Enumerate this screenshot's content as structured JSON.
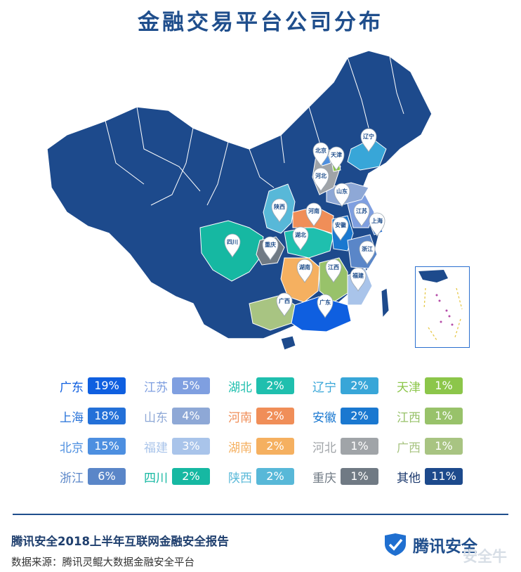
{
  "title": "金融交易平台公司分布",
  "map_pins": [
    "北京",
    "天津",
    "辽宁",
    "河北",
    "山东",
    "江苏",
    "上海",
    "陕西",
    "河南",
    "安徽",
    "四川",
    "重庆",
    "湖北",
    "浙江",
    "湖南",
    "江西",
    "福建",
    "广西",
    "广东"
  ],
  "legend": [
    {
      "name": "广东",
      "value": "19%",
      "color": "#0f5fe0",
      "text_color": "#0f5fe0"
    },
    {
      "name": "江苏",
      "value": "5%",
      "color": "#7f9fe0",
      "text_color": "#7f9fe0"
    },
    {
      "name": "湖北",
      "value": "2%",
      "color": "#1fbfae",
      "text_color": "#1fbfae"
    },
    {
      "name": "辽宁",
      "value": "2%",
      "color": "#38a6d8",
      "text_color": "#38a6d8"
    },
    {
      "name": "天津",
      "value": "1%",
      "color": "#8cc64a",
      "text_color": "#8cc64a"
    },
    {
      "name": "上海",
      "value": "18%",
      "color": "#2370d8",
      "text_color": "#2370d8"
    },
    {
      "name": "山东",
      "value": "4%",
      "color": "#8ea8d6",
      "text_color": "#8ea8d6"
    },
    {
      "name": "河南",
      "value": "2%",
      "color": "#f08e58",
      "text_color": "#f08e58"
    },
    {
      "name": "安徽",
      "value": "2%",
      "color": "#1a78d0",
      "text_color": "#1a78d0"
    },
    {
      "name": "江西",
      "value": "1%",
      "color": "#98c26a",
      "text_color": "#98c26a"
    },
    {
      "name": "北京",
      "value": "15%",
      "color": "#4d8fe0",
      "text_color": "#4d8fe0"
    },
    {
      "name": "福建",
      "value": "3%",
      "color": "#a9c4ea",
      "text_color": "#a9c4ea"
    },
    {
      "name": "湖南",
      "value": "2%",
      "color": "#f5b060",
      "text_color": "#f5b060"
    },
    {
      "name": "河北",
      "value": "1%",
      "color": "#a0a4a8",
      "text_color": "#a0a4a8"
    },
    {
      "name": "广西",
      "value": "1%",
      "color": "#a8c482",
      "text_color": "#a8c482"
    },
    {
      "name": "浙江",
      "value": "6%",
      "color": "#5a86c8",
      "text_color": "#5a86c8"
    },
    {
      "name": "四川",
      "value": "2%",
      "color": "#16b8a2",
      "text_color": "#16b8a2"
    },
    {
      "name": "陕西",
      "value": "2%",
      "color": "#58b8d8",
      "text_color": "#58b8d8"
    },
    {
      "name": "重庆",
      "value": "1%",
      "color": "#707a84",
      "text_color": "#707a84"
    },
    {
      "name": "其他",
      "value": "11%",
      "color": "#1d4a8c",
      "text_color": "#1d3a6e"
    }
  ],
  "footer": {
    "report": "腾讯安全2018上半年互联网金融安全报告",
    "source": "数据来源：腾讯灵鲲大数据金融安全平台",
    "brand": "腾讯安全",
    "watermark": "安全牛"
  }
}
